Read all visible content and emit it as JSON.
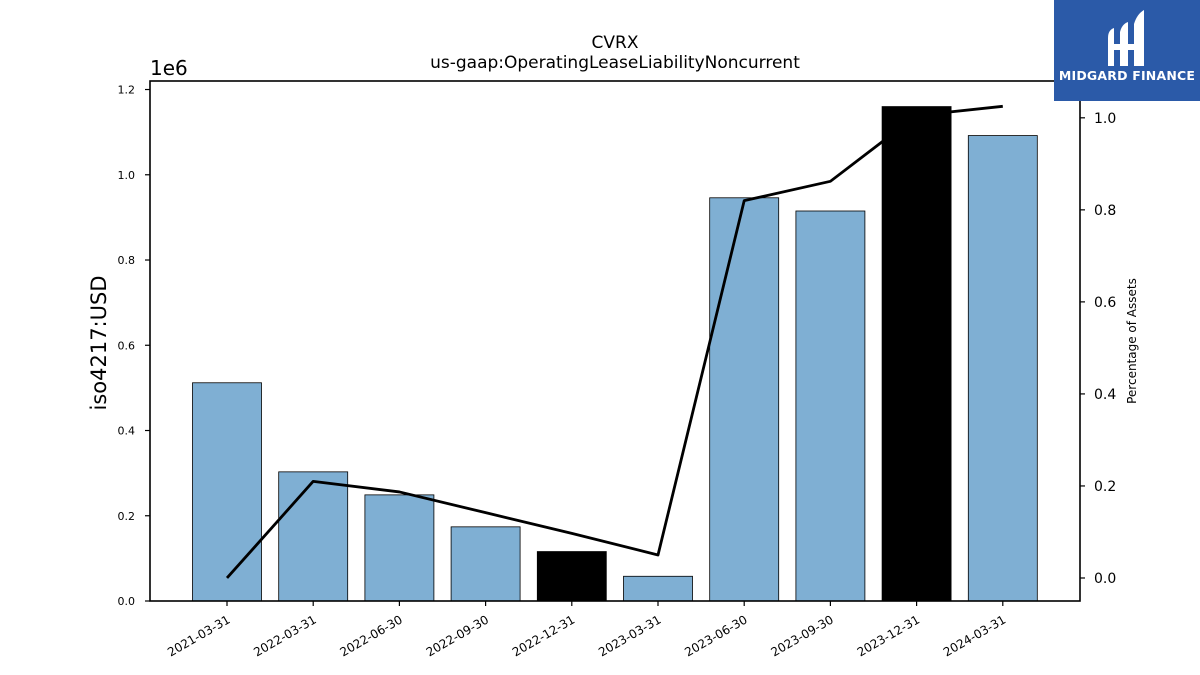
{
  "chart_data": {
    "type": "bar",
    "title": "CVRX",
    "subtitle": "us-gaap:OperatingLeaseLiabilityNoncurrent",
    "ylabel": "iso4217:USD",
    "y2label": "Percentage of Assets",
    "y_offset_label": "1e6",
    "categories": [
      "2021-03-31",
      "2022-03-31",
      "2022-06-30",
      "2022-09-30",
      "2022-12-31",
      "2023-03-31",
      "2023-06-30",
      "2023-09-30",
      "2023-12-31",
      "2024-03-31"
    ],
    "values": [
      512000,
      303000,
      249000,
      174000,
      116000,
      58000,
      946000,
      915000,
      1160000,
      1092000
    ],
    "highlight": [
      false,
      false,
      false,
      false,
      true,
      false,
      false,
      false,
      true,
      false
    ],
    "line_values": [
      0.0,
      0.21,
      0.187,
      0.142,
      0.097,
      0.05,
      0.82,
      0.862,
      1.005,
      1.025
    ],
    "ylim": [
      0,
      1220000
    ],
    "y2lim": [
      -0.05,
      1.08
    ],
    "yticks": [
      0.0,
      0.2,
      0.4,
      0.6,
      0.8,
      1.0,
      1.2
    ],
    "y2ticks": [
      0.0,
      0.2,
      0.4,
      0.6,
      0.8,
      1.0
    ],
    "bar_color": "#7fafd3",
    "highlight_color": "#000000",
    "line_color": "#000000",
    "grid": false
  },
  "logo": {
    "text": "MIDGARD FINANCE",
    "color": "#2b5aa8"
  }
}
